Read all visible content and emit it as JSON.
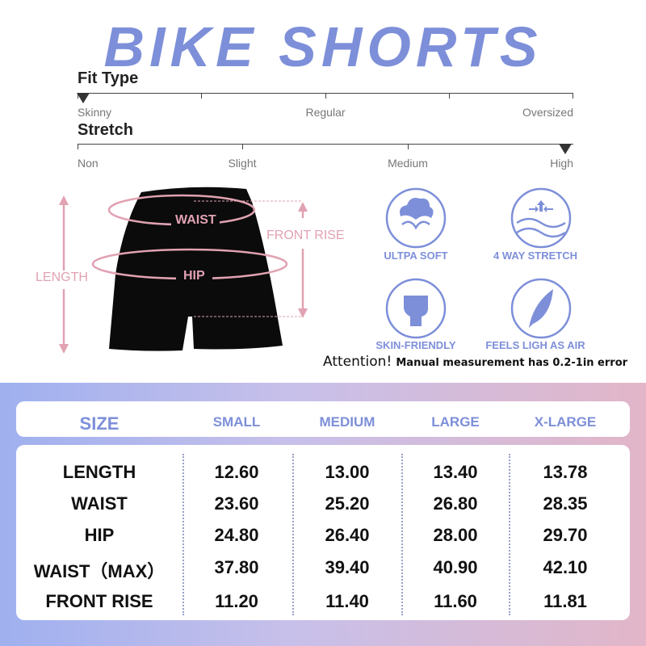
{
  "title": "BIKE SHORTS",
  "fit_type": {
    "label": "Fit Type",
    "options": [
      "Skinny",
      "Regular",
      "Oversized"
    ],
    "selected": "Skinny"
  },
  "stretch": {
    "label": "Stretch",
    "options": [
      "Non",
      "Slight",
      "Medium",
      "High"
    ],
    "selected": "High"
  },
  "diagram": {
    "waist": "WAIST",
    "hip": "HIP",
    "length": "LENGTH",
    "front_rise": "FRONT RISE"
  },
  "features": [
    {
      "label": "ULTPA SOFT",
      "icon": "cotton-icon"
    },
    {
      "label": "4 WAY STRETCH",
      "icon": "stretch-icon"
    },
    {
      "label": "SKIN-FRIENDLY",
      "icon": "fist-icon"
    },
    {
      "label": "FEELS LIGH AS AIR",
      "icon": "feather-icon"
    }
  ],
  "attention": {
    "strong": "Attention!",
    "text": "Manual measurement has 0.2-1in error"
  },
  "colors": {
    "accent": "#7d8fd9",
    "pink": "#e1a2b2"
  },
  "table": {
    "header": [
      "SIZE",
      "SMALL",
      "MEDIUM",
      "LARGE",
      "X-LARGE"
    ],
    "rows": [
      [
        "LENGTH",
        "12.60",
        "13.00",
        "13.40",
        "13.78"
      ],
      [
        "WAIST",
        "23.60",
        "25.20",
        "26.80",
        "28.35"
      ],
      [
        "HIP",
        "24.80",
        "26.40",
        "28.00",
        "29.70"
      ],
      [
        "WAIST（MAX）",
        "37.80",
        "39.40",
        "40.90",
        "42.10"
      ],
      [
        "FRONT RISE",
        "11.20",
        "11.40",
        "11.60",
        "11.81"
      ]
    ]
  }
}
